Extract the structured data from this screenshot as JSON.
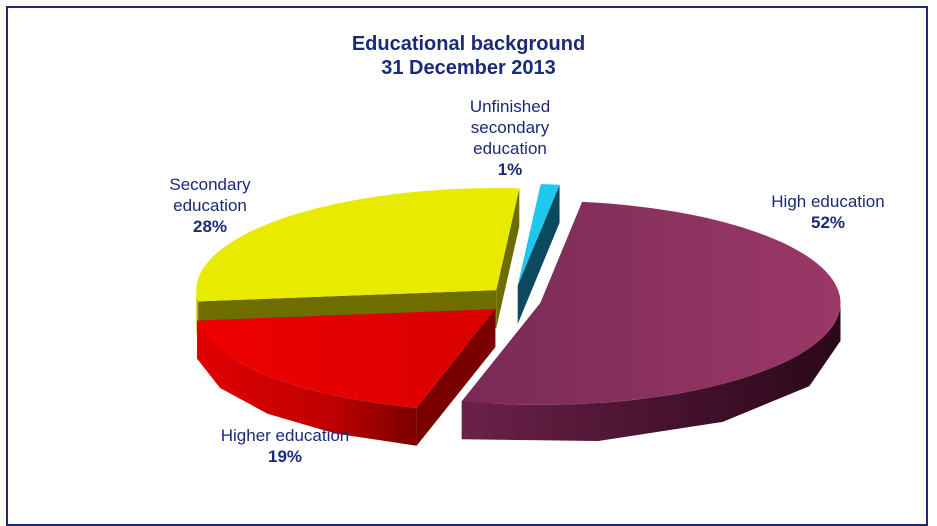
{
  "chart_data": {
    "type": "pie",
    "title": "Educational background",
    "subtitle": "31 December 2013",
    "slices": [
      {
        "label_lines": [
          "High education"
        ],
        "percent_label": "52%",
        "value": 52,
        "color": "#8b2f5e"
      },
      {
        "label_lines": [
          "Higher education"
        ],
        "percent_label": "19%",
        "value": 19,
        "color": "#e60000"
      },
      {
        "label_lines": [
          "Secondary",
          "education"
        ],
        "percent_label": "28%",
        "value": 28,
        "color": "#e8ea00"
      },
      {
        "label_lines": [
          "Unfinished",
          "secondary",
          "education"
        ],
        "percent_label": "1%",
        "value": 1,
        "color": "#1ec8ec"
      }
    ],
    "style": "3d-exploded",
    "legend": "none"
  }
}
